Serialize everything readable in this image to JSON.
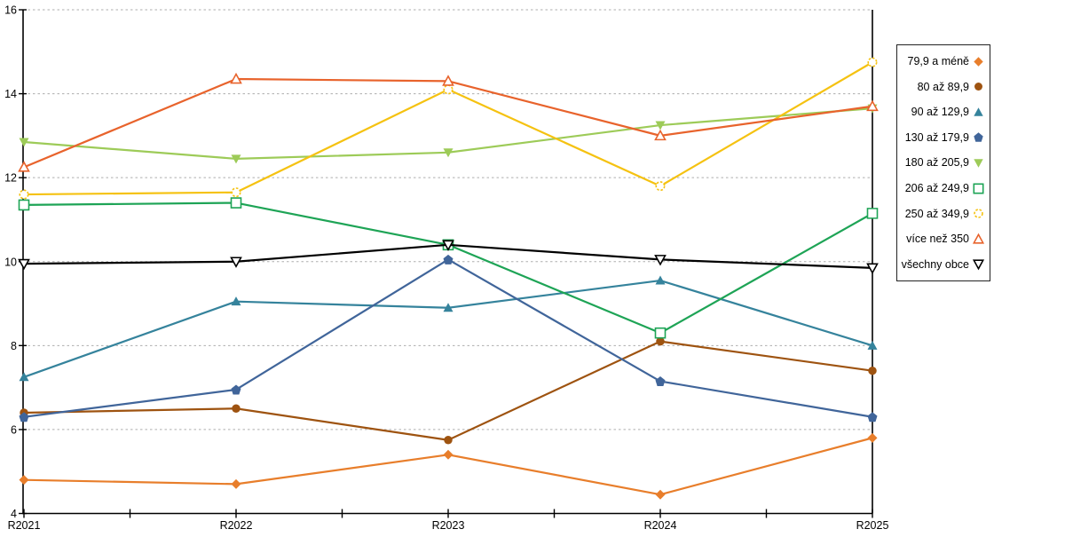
{
  "chart_data": {
    "type": "line",
    "title": "",
    "xlabel": "",
    "ylabel": "",
    "categories": [
      "R2021",
      "R2022",
      "R2023",
      "R2024",
      "R2025"
    ],
    "ylim": [
      4,
      16
    ],
    "y_ticks": [
      4,
      6,
      8,
      10,
      12,
      14,
      16
    ],
    "grid": "horizontal-dashed",
    "legend_position": "right",
    "series": [
      {
        "name": "79,9 a méně",
        "color": "#E87E2B",
        "marker": "diamond",
        "marker_style": "filled",
        "values": [
          4.8,
          4.7,
          5.4,
          4.45,
          5.8
        ]
      },
      {
        "name": "80 až 89,9",
        "color": "#9E5310",
        "marker": "circle",
        "marker_style": "filled",
        "values": [
          6.4,
          6.5,
          5.75,
          8.1,
          7.4
        ]
      },
      {
        "name": "90 až 129,9",
        "color": "#35839C",
        "marker": "triangle-up",
        "marker_style": "filled",
        "values": [
          7.25,
          9.05,
          8.9,
          9.55,
          8.0
        ]
      },
      {
        "name": "130 až 179,9",
        "color": "#40659A",
        "marker": "pentagon",
        "marker_style": "filled",
        "values": [
          6.3,
          6.95,
          10.05,
          7.15,
          6.3
        ]
      },
      {
        "name": "180 až 205,9",
        "color": "#9DCB58",
        "marker": "triangle-down",
        "marker_style": "filled",
        "values": [
          12.85,
          12.45,
          12.6,
          13.25,
          13.65
        ]
      },
      {
        "name": "206 až 249,9",
        "color": "#1EA456",
        "marker": "square",
        "marker_style": "open",
        "values": [
          11.35,
          11.4,
          10.4,
          8.3,
          11.15
        ]
      },
      {
        "name": "250 až 349,9",
        "color": "#F5C211",
        "marker": "circle",
        "marker_style": "open-dashed",
        "values": [
          11.6,
          11.65,
          14.1,
          11.8,
          14.75
        ]
      },
      {
        "name": "více než 350",
        "color": "#E8632C",
        "marker": "triangle-up",
        "marker_style": "open",
        "values": [
          12.25,
          14.35,
          14.3,
          13.0,
          13.7
        ]
      },
      {
        "name": "všechny obce",
        "color": "#000000",
        "marker": "triangle-down",
        "marker_style": "open",
        "values": [
          9.95,
          10.0,
          10.4,
          10.05,
          9.85
        ]
      }
    ],
    "colors": {
      "gridline": "#ADADAD",
      "axis": "#000000",
      "background": "#FFFFFF"
    }
  }
}
